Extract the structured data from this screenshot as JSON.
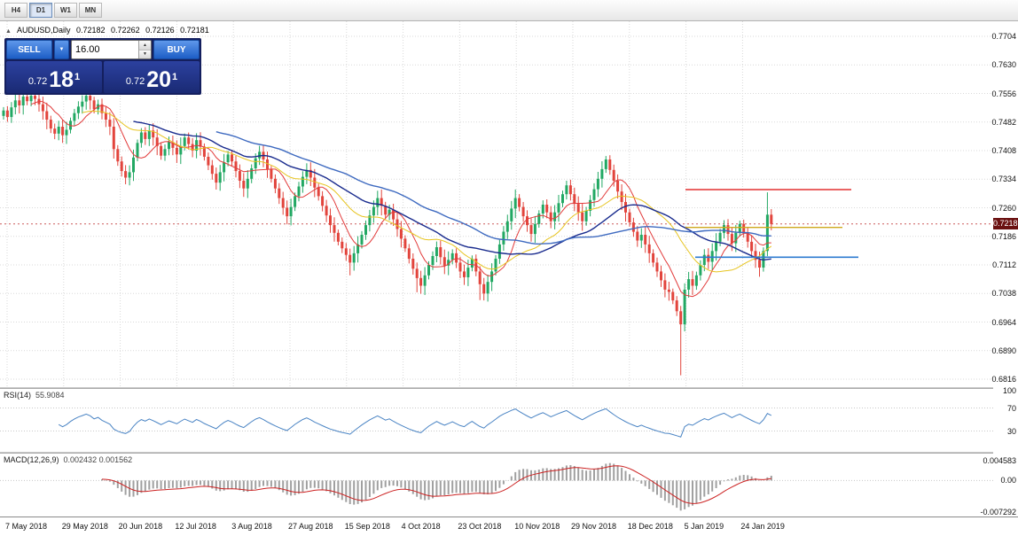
{
  "toolbar": {
    "timeframes": [
      {
        "label": "H4",
        "active": false
      },
      {
        "label": "D1",
        "active": true
      },
      {
        "label": "W1",
        "active": false
      },
      {
        "label": "MN",
        "active": false
      }
    ]
  },
  "chart": {
    "symbol_label": "AUDUSD,Daily",
    "ohlc_display": {
      "open": "0.72182",
      "high": "0.72262",
      "low": "0.72126",
      "close": "0.72181"
    },
    "current_price": "0.72181",
    "trade_panel": {
      "sell_label": "SELL",
      "buy_label": "BUY",
      "volume": "16.00",
      "dropdown_icon": "▼",
      "spinner_up": "▲",
      "spinner_down": "▼",
      "collapse_icon": "▲",
      "sell_price": {
        "prefix": "0.72",
        "big": "18",
        "sup": "1"
      },
      "buy_price": {
        "prefix": "0.72",
        "big": "20",
        "sup": "1"
      }
    },
    "price_axis": [
      "0.7704",
      "0.7630",
      "0.7556",
      "0.7482",
      "0.7408",
      "0.7334",
      "0.7260",
      "0.7186",
      "0.7112",
      "0.7038",
      "0.6964",
      "0.6890",
      "0.6816"
    ],
    "date_axis": [
      "7 May 2018",
      "29 May 2018",
      "20 Jun 2018",
      "12 Jul 2018",
      "3 Aug 2018",
      "27 Aug 2018",
      "15 Sep 2018",
      "4 Oct 2018",
      "23 Oct 2018",
      "10 Nov 2018",
      "29 Nov 2018",
      "18 Dec 2018",
      "5 Jan 2019",
      "24 Jan 2019"
    ]
  },
  "rsi": {
    "label": "RSI(14)",
    "value": "55.9084",
    "levels": [
      "100",
      "70",
      "30"
    ]
  },
  "macd": {
    "label": "MACD(12,26,9)",
    "values": "0.002432 0.001562",
    "axis": [
      "0.004583",
      "0.00",
      "-0.007292"
    ]
  },
  "colors": {
    "bull": "#22a863",
    "bear": "#e2443c",
    "grid": "#d9d9d9",
    "bid_line": "#cc5a5a",
    "badge_bg": "#6b1111",
    "rsi_line": "#4a84c4",
    "rsi_level": "#c8c8c8",
    "macd_hist": "#a0a0a0",
    "macd_signal": "#cc2222"
  },
  "chart_data": {
    "type": "candlestick",
    "symbol": "AUDUSD",
    "timeframe": "Daily",
    "ylim": [
      0.6816,
      0.7704
    ],
    "first_open": 0.7498,
    "default_wick": 0.0016,
    "closes": [
      0.7512,
      0.7495,
      0.752,
      0.7538,
      0.7525,
      0.7548,
      0.7536,
      0.755,
      0.7542,
      0.7528,
      0.751,
      0.7488,
      0.7465,
      0.7452,
      0.747,
      0.7448,
      0.7462,
      0.7485,
      0.7505,
      0.7522,
      0.7535,
      0.755,
      0.7538,
      0.7515,
      0.7528,
      0.7505,
      0.7488,
      0.747,
      0.7412,
      0.738,
      0.7355,
      0.7338,
      0.7352,
      0.739,
      0.7428,
      0.7455,
      0.7438,
      0.746,
      0.7442,
      0.742,
      0.7395,
      0.7412,
      0.743,
      0.7415,
      0.7398,
      0.742,
      0.7442,
      0.7425,
      0.7408,
      0.7435,
      0.7418,
      0.7392,
      0.737,
      0.7348,
      0.7325,
      0.7352,
      0.7378,
      0.7398,
      0.738,
      0.7355,
      0.733,
      0.731,
      0.7335,
      0.7362,
      0.7388,
      0.7405,
      0.7385,
      0.736,
      0.7335,
      0.731,
      0.7285,
      0.726,
      0.7238,
      0.7262,
      0.729,
      0.7315,
      0.734,
      0.7358,
      0.7338,
      0.7312,
      0.729,
      0.7265,
      0.724,
      0.7215,
      0.7195,
      0.7172,
      0.7155,
      0.7138,
      0.7118,
      0.7142,
      0.7165,
      0.719,
      0.7215,
      0.724,
      0.7262,
      0.7285,
      0.7265,
      0.7242,
      0.7255,
      0.723,
      0.7205,
      0.718,
      0.7155,
      0.7128,
      0.7102,
      0.7078,
      0.7058,
      0.7085,
      0.7112,
      0.7135,
      0.7158,
      0.7132,
      0.711,
      0.7125,
      0.7142,
      0.7118,
      0.7095,
      0.708,
      0.7105,
      0.7128,
      0.7095,
      0.7062,
      0.7038,
      0.7068,
      0.7095,
      0.7128,
      0.7165,
      0.7198,
      0.7225,
      0.7258,
      0.7285,
      0.7262,
      0.7238,
      0.7215,
      0.7192,
      0.7218,
      0.7245,
      0.7268,
      0.7248,
      0.7225,
      0.7248,
      0.7272,
      0.7295,
      0.7318,
      0.7295,
      0.727,
      0.7248,
      0.7225,
      0.7252,
      0.728,
      0.7308,
      0.7335,
      0.736,
      0.7385,
      0.7358,
      0.733,
      0.7302,
      0.7275,
      0.7248,
      0.7222,
      0.7198,
      0.7175,
      0.719,
      0.7165,
      0.7142,
      0.7118,
      0.7095,
      0.7072,
      0.7048,
      0.7042,
      0.702,
      0.6992,
      0.6958,
      0.7048,
      0.7075,
      0.7058,
      0.7085,
      0.7112,
      0.7138,
      0.712,
      0.7148,
      0.7172,
      0.7195,
      0.7215,
      0.7192,
      0.7168,
      0.7195,
      0.7218,
      0.7195,
      0.7172,
      0.7148,
      0.7125,
      0.7105,
      0.7148,
      0.7242,
      0.7218
    ],
    "wick_overrides": {
      "7": {
        "high": 0.7556
      },
      "88": {
        "low": 0.7085
      },
      "95": {
        "high": 0.7304
      },
      "105": {
        "low": 0.7041
      },
      "121": {
        "low": 0.7021
      },
      "153": {
        "high": 0.7394
      },
      "172": {
        "low": 0.6826
      },
      "194": {
        "high": 0.73
      }
    },
    "ma": [
      {
        "period": 8,
        "color": "#e23b3b",
        "width": 1
      },
      {
        "period": 21,
        "color": "#e7c41f",
        "width": 1
      },
      {
        "period": 34,
        "color": "#1a2c8e",
        "width": 1.4
      },
      {
        "period": 55,
        "color": "#3e6ac0",
        "width": 1.4
      }
    ],
    "hlines": [
      {
        "price": 0.7307,
        "color": "#e33030",
        "width": 1.6,
        "from": 0.69,
        "to": 0.857
      },
      {
        "price": 0.7209,
        "color": "#cfa91c",
        "width": 1.4,
        "from": 0.69,
        "to": 0.848
      },
      {
        "price": 0.7132,
        "color": "#2d7bd0",
        "width": 1.6,
        "from": 0.7,
        "to": 0.864
      }
    ],
    "indicators": {
      "rsi_period": 14,
      "macd": [
        12,
        26,
        9
      ]
    }
  }
}
